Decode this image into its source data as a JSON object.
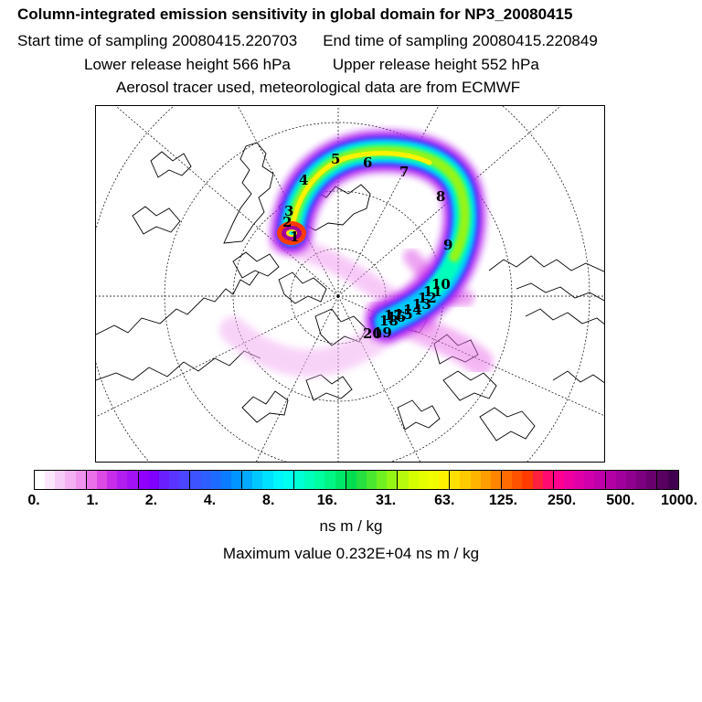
{
  "header": {
    "title": "Column-integrated emission sensitivity in global domain for NP3_20080415",
    "start_label": "Start time of sampling 20080415.220703",
    "end_label": "End time of sampling 20080415.220849",
    "lower_release": "Lower release height  566 hPa",
    "upper_release": "Upper release height  552 hPa",
    "tracer_info": "Aerosol tracer used, meteorological data are from ECMWF"
  },
  "map": {
    "projection": "north-polar-stereographic",
    "day_labels": [
      "1",
      "2",
      "3",
      "4",
      "5",
      "6",
      "7",
      "8",
      "9",
      "10",
      "11",
      "12",
      "13",
      "14",
      "15",
      "16",
      "17",
      "18",
      "19",
      "20"
    ]
  },
  "colorbar": {
    "tick_labels": [
      "0.",
      "1.",
      "2.",
      "4.",
      "8.",
      "16.",
      "31.",
      "63.",
      "125.",
      "250.",
      "500.",
      "1000."
    ],
    "colors": [
      "#ffffff",
      "#fbe6fb",
      "#f7cbf7",
      "#f3b0f3",
      "#ef93ef",
      "#e970e9",
      "#dc4ae5",
      "#c72ee9",
      "#b21eef",
      "#a311f5",
      "#9100fb",
      "#7f00ff",
      "#6a1fff",
      "#5b33ff",
      "#4b45ff",
      "#3c53ff",
      "#2d5fff",
      "#1e6cff",
      "#0b7cff",
      "#0095ff",
      "#00aaff",
      "#00c8ff",
      "#00e0ff",
      "#00f5ff",
      "#00ffee",
      "#00ffd5",
      "#00ffbb",
      "#00ffa0",
      "#00f585",
      "#00e86a",
      "#00dd50",
      "#25e03e",
      "#4ae82e",
      "#70f020",
      "#95f515",
      "#b8fa0d",
      "#d5ff00",
      "#e5ff00",
      "#f2ff00",
      "#fff200",
      "#ffe000",
      "#ffcb00",
      "#ffb500",
      "#ff9e00",
      "#ff8400",
      "#ff6b00",
      "#ff5200",
      "#ff3b00",
      "#ff2040",
      "#ff0a70",
      "#ff0090",
      "#f000a0",
      "#e000a8",
      "#d000ac",
      "#c000aa",
      "#b200a5",
      "#a1009c",
      "#8f008f",
      "#7d0080",
      "#6a0070",
      "#570060",
      "#440050"
    ],
    "unit": "ns m / kg",
    "max_value": "Maximum value  0.232E+04 ns m / kg"
  }
}
